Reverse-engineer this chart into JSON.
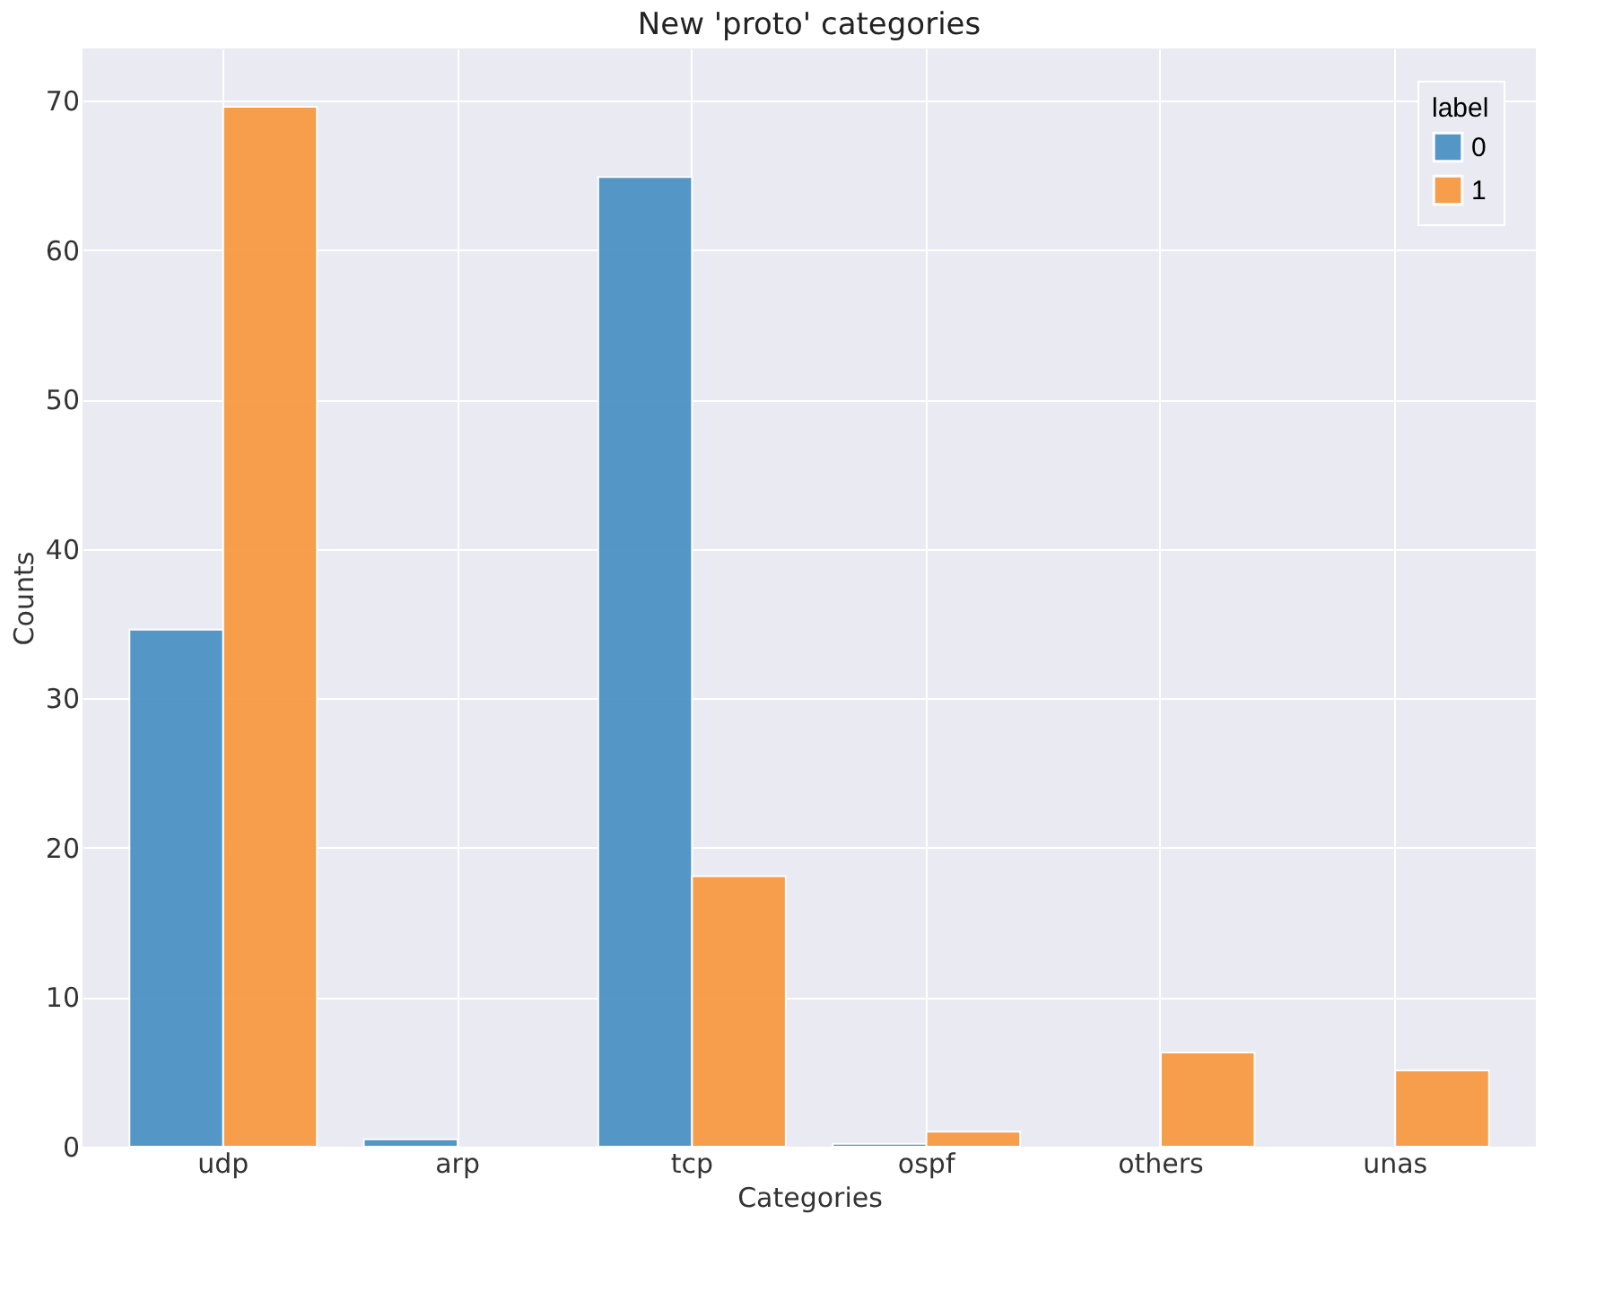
{
  "chart_data": {
    "type": "bar",
    "title": "New 'proto' categories",
    "xlabel": "Categories",
    "ylabel": "Counts",
    "legend_title": "label",
    "categories": [
      "udp",
      "arp",
      "tcp",
      "ospf",
      "others",
      "unas"
    ],
    "series": [
      {
        "name": "0",
        "color": "#4c92c3",
        "values": [
          34.6,
          0.5,
          64.9,
          0.2,
          null,
          null
        ]
      },
      {
        "name": "1",
        "color": "#f89a44",
        "values": [
          69.6,
          null,
          18.1,
          1.0,
          6.3,
          5.1
        ]
      }
    ],
    "ylim": [
      0,
      73.5
    ],
    "yticks": [
      0,
      10,
      20,
      30,
      40,
      50,
      60,
      70
    ],
    "grid": true,
    "legend": "top right"
  }
}
